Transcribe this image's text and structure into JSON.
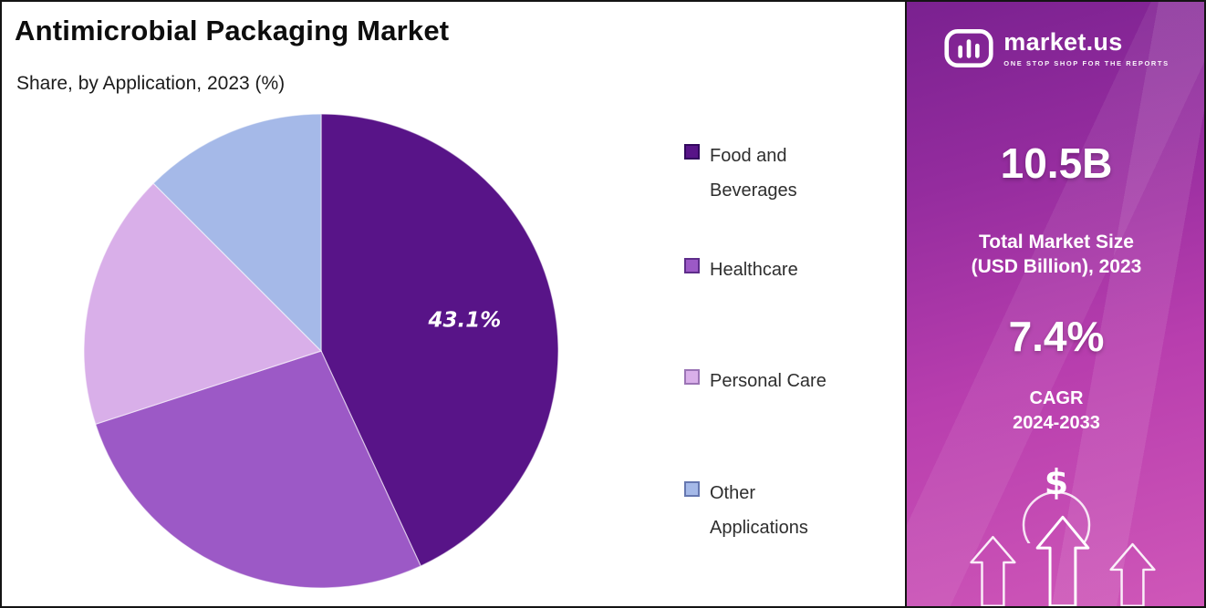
{
  "header": {
    "title": "Antimicrobial Packaging Market",
    "subtitle": "Share, by Application, 2023 (%)"
  },
  "chart_data": {
    "type": "pie",
    "title": "Antimicrobial Packaging Market",
    "subtitle": "Share, by Application, 2023 (%)",
    "values_are": "percent share",
    "direction": "clockwise",
    "start_angle": "12 o'clock",
    "legend_position": "right",
    "series": [
      {
        "name": "Food and Beverages",
        "value": 43.1,
        "label": "43.1%",
        "color": "#581488",
        "border": "#32085e"
      },
      {
        "name": "Healthcare",
        "value": 26.9,
        "color": "#9c59c6",
        "border": "#5e2d8a"
      },
      {
        "name": "Personal Care",
        "value": 17.5,
        "color": "#d9afe9",
        "border": "#9b74b5"
      },
      {
        "name": "Other Applications",
        "value": 12.5,
        "color": "#a5b9e8",
        "border": "#6577b0"
      }
    ]
  },
  "sidebar": {
    "brand": {
      "name": "market.us",
      "tagline": "ONE STOP SHOP FOR THE REPORTS",
      "logo": "market-us-logo"
    },
    "stat1": {
      "value": "10.5B",
      "label_line1": "Total Market Size",
      "label_line2": "(USD Billion), 2023"
    },
    "stat2": {
      "value": "7.4%",
      "label_line1": "CAGR",
      "label_line2": "2024-2033"
    },
    "icons": [
      "dollar-icon",
      "growth-arrows-icon"
    ],
    "colors": {
      "gradient_top": "#7a2190",
      "gradient_bottom": "#cf57b8"
    }
  }
}
